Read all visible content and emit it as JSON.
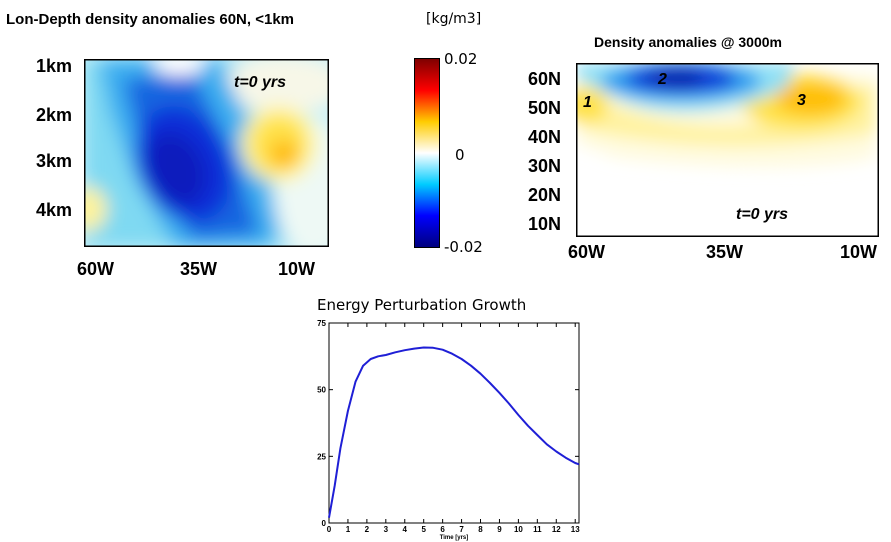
{
  "panel_left": {
    "title": "Lon-Depth density anomalies 60N, <1km",
    "time_label": "t=0 yrs",
    "y_ticks": [
      "1km",
      "2km",
      "3km",
      "4km"
    ],
    "x_ticks": [
      "60W",
      "35W",
      "10W"
    ]
  },
  "colorbar": {
    "unit": "[kg/m3]",
    "labels": [
      "0.02",
      "0",
      "-0.02"
    ],
    "colors": [
      "#7f0000",
      "#ff0000",
      "#ffcc00",
      "#ffffff",
      "#00ccff",
      "#0000ff",
      "#00007f"
    ]
  },
  "panel_right": {
    "title": "Density anomalies @ 3000m",
    "time_label": "t=0 yrs",
    "y_ticks": [
      "60N",
      "50N",
      "40N",
      "30N",
      "20N",
      "10N"
    ],
    "x_ticks": [
      "60W",
      "35W",
      "10W"
    ],
    "markers": [
      "1",
      "2",
      "3"
    ]
  },
  "chart_data": {
    "type": "line",
    "title": "Energy Perturbation Growth",
    "xlabel": "Time [yrs]",
    "ylabel": "",
    "xlim": [
      0,
      13.2
    ],
    "ylim": [
      0,
      75
    ],
    "x_ticks": [
      0,
      1,
      2,
      3,
      4,
      5,
      6,
      7,
      8,
      9,
      10,
      11,
      12,
      13
    ],
    "y_ticks": [
      0,
      25,
      50,
      75
    ],
    "series": [
      {
        "color": "#1f1fd6",
        "x": [
          0,
          0.3,
          0.6,
          1.0,
          1.4,
          1.8,
          2.2,
          2.6,
          3.0,
          3.5,
          4.0,
          4.5,
          5.0,
          5.5,
          6.0,
          6.5,
          7.0,
          7.5,
          8.0,
          8.5,
          9.0,
          9.5,
          10.0,
          10.5,
          11.0,
          11.5,
          12.0,
          12.5,
          13.0,
          13.2
        ],
        "y": [
          2,
          14,
          28,
          42,
          53,
          59,
          61.5,
          62.5,
          63,
          64,
          64.8,
          65.4,
          65.8,
          65.7,
          65,
          63.5,
          61.5,
          59,
          56,
          52.5,
          48.8,
          44.8,
          40.5,
          36.5,
          33,
          29.5,
          26.8,
          24.5,
          22.5,
          22
        ]
      }
    ]
  }
}
